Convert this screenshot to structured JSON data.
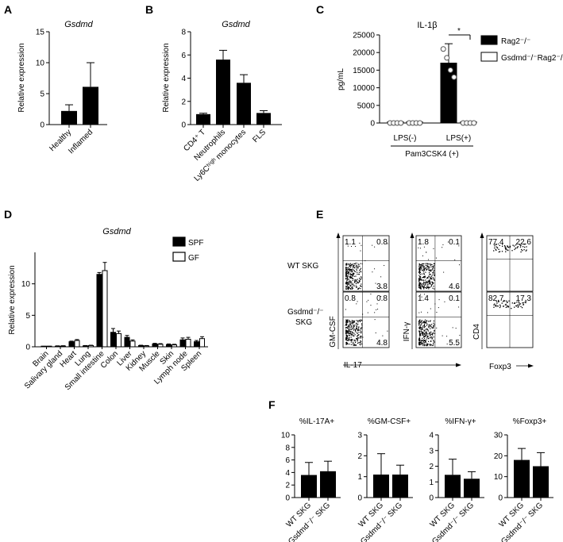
{
  "panels": {
    "A": "A",
    "B": "B",
    "C": "C",
    "D": "D",
    "E": "E",
    "F": "F"
  },
  "chart_data": [
    {
      "id": "A",
      "type": "bar",
      "title": "Gsdmd",
      "ylabel": "Relative expression",
      "categories": [
        "Healthy",
        "Inflamed"
      ],
      "values": [
        2.2,
        6.1
      ],
      "errors": [
        1.0,
        3.9
      ],
      "ylim": [
        0,
        15
      ],
      "yticks": [
        0,
        5,
        10,
        15
      ]
    },
    {
      "id": "B",
      "type": "bar",
      "title": "Gsdmd",
      "ylabel": "Relative expression",
      "categories": [
        "CD4⁺ T",
        "Neutrophils",
        "Ly6Cʰⁱᵍʰ monocytes",
        "FLS"
      ],
      "values": [
        0.9,
        5.6,
        3.6,
        1.0
      ],
      "errors": [
        0.08,
        0.8,
        0.7,
        0.2
      ],
      "ylim": [
        0,
        8
      ],
      "yticks": [
        0,
        2,
        4,
        6,
        8
      ]
    },
    {
      "id": "C",
      "type": "bar",
      "title": "IL-1β",
      "ylabel": "pg/mL",
      "categories": [
        "LPS(-)",
        "LPS(+)"
      ],
      "group_label": "Pam3CSK4 (+)",
      "significance": "*",
      "ylim": [
        0,
        25000
      ],
      "yticks": [
        0,
        5000,
        10000,
        15000,
        20000,
        25000
      ],
      "series": [
        {
          "name": "Rag2⁻/⁻",
          "values": [
            0,
            17000
          ],
          "errors": [
            0,
            5500
          ],
          "points": [
            [
              0,
              0,
              0,
              0
            ],
            [
              21000,
              18500,
              15000,
              13000
            ]
          ]
        },
        {
          "name": "Gsdmd⁻/⁻Rag2⁻/⁻",
          "values": [
            0,
            0
          ],
          "errors": [
            0,
            0
          ],
          "points": [
            [
              0,
              0,
              0,
              0
            ],
            [
              0,
              0,
              0,
              0
            ]
          ]
        }
      ]
    },
    {
      "id": "D",
      "type": "bar",
      "title": "Gsdmd",
      "ylabel": "Relative expression",
      "categories": [
        "Brain",
        "Salivary gland",
        "Heart",
        "Lung",
        "Small intestine",
        "Colon",
        "Liver",
        "Kidney",
        "Muscle",
        "Skin",
        "Lymph node",
        "Spleen"
      ],
      "ylim": [
        0,
        15
      ],
      "yticks": [
        0,
        5,
        10
      ],
      "series": [
        {
          "name": "SPF",
          "values": [
            0.05,
            0.1,
            0.8,
            0.15,
            11.5,
            2.3,
            1.5,
            0.2,
            0.45,
            0.35,
            1.1,
            0.8
          ],
          "errors": [
            0.02,
            0.05,
            0.1,
            0.05,
            0.3,
            0.6,
            0.3,
            0.05,
            0.1,
            0.1,
            0.3,
            0.2
          ]
        },
        {
          "name": "GF",
          "values": [
            0.05,
            0.12,
            1.0,
            0.2,
            12.1,
            2.1,
            0.9,
            0.15,
            0.4,
            0.3,
            1.2,
            1.3
          ],
          "errors": [
            0.02,
            0.05,
            0.15,
            0.05,
            1.3,
            0.4,
            0.2,
            0.05,
            0.1,
            0.1,
            0.3,
            0.3
          ]
        }
      ]
    },
    {
      "id": "E",
      "type": "scatter",
      "row_labels": [
        "WT SKG",
        "Gsdmd⁻/⁻ SKG"
      ],
      "xlabels": [
        "IL-17",
        "Foxp3"
      ],
      "ylabels": [
        "GM-CSF",
        "IFN-γ",
        "CD4"
      ],
      "plots": [
        {
          "row": 0,
          "col": 0,
          "q": [
            "1.1",
            "0.8",
            "",
            "3.8"
          ]
        },
        {
          "row": 0,
          "col": 1,
          "q": [
            "1.8",
            "0.1",
            "",
            "4.6"
          ]
        },
        {
          "row": 0,
          "col": 2,
          "q": [
            "77.4",
            "22.6",
            "",
            ""
          ]
        },
        {
          "row": 1,
          "col": 0,
          "q": [
            "0.8",
            "0.8",
            "",
            "4.8"
          ]
        },
        {
          "row": 1,
          "col": 1,
          "q": [
            "1.4",
            "0.1",
            "",
            "5.5"
          ]
        },
        {
          "row": 1,
          "col": 2,
          "q": [
            "82.7",
            "17.3",
            "",
            ""
          ]
        }
      ]
    },
    {
      "id": "F",
      "type": "bar",
      "charts": [
        {
          "title": "%IL-17A+",
          "categories": [
            "WT SKG",
            "Gsdmd⁻/⁻ SKG"
          ],
          "values": [
            3.6,
            4.2
          ],
          "errors": [
            2.0,
            1.6
          ],
          "ylim": [
            0,
            10
          ],
          "yticks": [
            0,
            2,
            4,
            6,
            8,
            10
          ]
        },
        {
          "title": "%GM-CSF+",
          "categories": [
            "WT SKG",
            "Gsdmd⁻/⁻ SKG"
          ],
          "values": [
            1.1,
            1.1
          ],
          "errors": [
            1.0,
            0.45
          ],
          "ylim": [
            0,
            3
          ],
          "yticks": [
            0,
            1,
            2,
            3
          ]
        },
        {
          "title": "%IFN-γ+",
          "categories": [
            "WT SKG",
            "Gsdmd⁻/⁻ SKG"
          ],
          "values": [
            1.45,
            1.2
          ],
          "errors": [
            1.0,
            0.45
          ],
          "ylim": [
            0,
            4
          ],
          "yticks": [
            0,
            1,
            2,
            3,
            4
          ]
        },
        {
          "title": "%Foxp3+",
          "categories": [
            "WT SKG",
            "Gsdmd⁻/⁻ SKG"
          ],
          "values": [
            18,
            15
          ],
          "errors": [
            5.5,
            6.5
          ],
          "ylim": [
            0,
            30
          ],
          "yticks": [
            0,
            10,
            20,
            30
          ]
        }
      ]
    }
  ]
}
